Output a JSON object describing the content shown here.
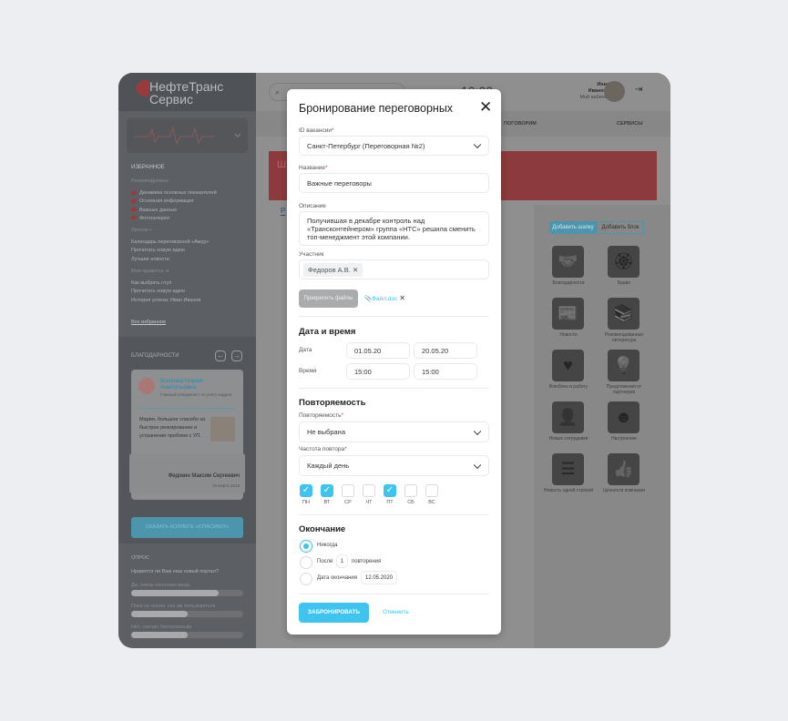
{
  "brand": {
    "line1": "НефтеТранс",
    "line2": "Сервис"
  },
  "sidebar": {
    "favorites_title": "ИЗБРАННОЕ",
    "recommended_title": "Рекомендуемое",
    "recommended": [
      "Динамика основных показателей",
      "Основная информация",
      "Важные данные",
      "Фотогалерея"
    ],
    "personal_title": "Личное",
    "personal": [
      "Календарь переговорной «Амур»",
      "Прочитать новую идею",
      "Лучшие новости"
    ],
    "likes_title": "Мне нравится",
    "likes": [
      "Как выбрать стул",
      "Прочитать новую идею",
      "История успеха: Иван Иванов"
    ],
    "all_favorites": "Все избранное",
    "thanks_title": "БЛАГОДАРНОСТИ",
    "thanks_card": {
      "name_line1": "Волкова Мария",
      "name_line2": "Анатольевна",
      "position": "Главный специалист по учету кадров",
      "message": "Мария, большое спасибо за быстрое реагирование и устранение проблем с УП.",
      "from": "Федокин Максим Сергеевич",
      "date": "15 марта 2019"
    },
    "thanks_button": "СКАЗАТЬ КОЛЛЕГЕ «СПАСИБО!»",
    "poll_title": "ОПРОС",
    "poll_question": "Нравится ли Вам наш новый портал?",
    "poll_options": [
      {
        "label": "Да, очень полезная вещь",
        "percent": 78
      },
      {
        "label": "Пока не понял, как им пользоваться",
        "percent": 50
      },
      {
        "label": "Нет, считаю бесполезным",
        "percent": 50
      }
    ]
  },
  "header": {
    "search_placeholder": "",
    "clock": "10:00",
    "user_first": "Инна",
    "user_last": "Иванова",
    "cabinet": "Мой кабинет"
  },
  "nav": {
    "items": [
      "ПОГОВОРИМ",
      "СЕРВИСЫ"
    ]
  },
  "banner": {
    "initial": "Ш"
  },
  "content": {
    "tab": "Р",
    "add_header": "Добавить шапку",
    "add_block": "Добавить блок",
    "tiles": [
      {
        "label": "Благодарности",
        "icon": "handshake-icon",
        "glyph": "🤝"
      },
      {
        "label": "Браво",
        "icon": "award-icon",
        "glyph": "🏵"
      },
      {
        "label": "Новости",
        "icon": "newspaper-icon",
        "glyph": "📰"
      },
      {
        "label": "Рекомендованная литература",
        "icon": "books-icon",
        "glyph": "📚"
      },
      {
        "label": "Влюблен в работу",
        "icon": "heart-icon",
        "glyph": "♥"
      },
      {
        "label": "Предложения от партнеров",
        "icon": "lightbulb-icon",
        "glyph": "💡"
      },
      {
        "label": "Новые сотрудники",
        "icon": "person-icon",
        "glyph": "👤"
      },
      {
        "label": "Настроение",
        "icon": "smile-icon",
        "glyph": "☻"
      },
      {
        "label": "Новость одной строкой",
        "icon": "list-icon",
        "glyph": "☰"
      },
      {
        "label": "Ценности компании",
        "icon": "thumbs-up-icon",
        "glyph": "👍"
      }
    ]
  },
  "modal": {
    "title": "Бронирование переговорных",
    "room_label": "ID вакансии",
    "room_value": "Санкт-Петербург (Переговорная №2)",
    "name_label": "Название",
    "name_value": "Важные переговоры",
    "desc_label": "Описание",
    "desc_value": "Получившая в декабре контроль над «Трансконтейнером» группа «НТС» решила сменить топ-менеджмент этой компании.",
    "participant_label": "Участник",
    "participant_chip": "Федоров А.В.",
    "attach_button": "Прикрепить файлы",
    "file_name": "Файл.doc",
    "datetime_title": "Дата и время",
    "date_label": "Дата",
    "date_from": "01.05.20",
    "date_to": "20.05.20",
    "time_label": "Время",
    "time_from": "15:00",
    "time_to": "15:00",
    "repeat_title": "Повторяемость",
    "repeat_label": "Повторяемость",
    "repeat_value": "Не выбрана",
    "freq_label": "Частота повтора",
    "freq_value": "Каждый день",
    "days": [
      {
        "label": "ПН",
        "checked": true
      },
      {
        "label": "ВТ",
        "checked": true
      },
      {
        "label": "СР",
        "checked": false
      },
      {
        "label": "ЧТ",
        "checked": false
      },
      {
        "label": "ПТ",
        "checked": true
      },
      {
        "label": "СБ",
        "checked": false
      },
      {
        "label": "ВС",
        "checked": false
      }
    ],
    "end_title": "Окончание",
    "end_never": "Никогда",
    "end_after": "После",
    "end_after_count": "1",
    "end_after_suffix": "повторения",
    "end_date_label": "Дата окончания",
    "end_date": "12.05.2020",
    "submit": "ЗАБРОНИРОВАТЬ",
    "cancel": "Отменить",
    "accent": "#3fc3ef"
  }
}
